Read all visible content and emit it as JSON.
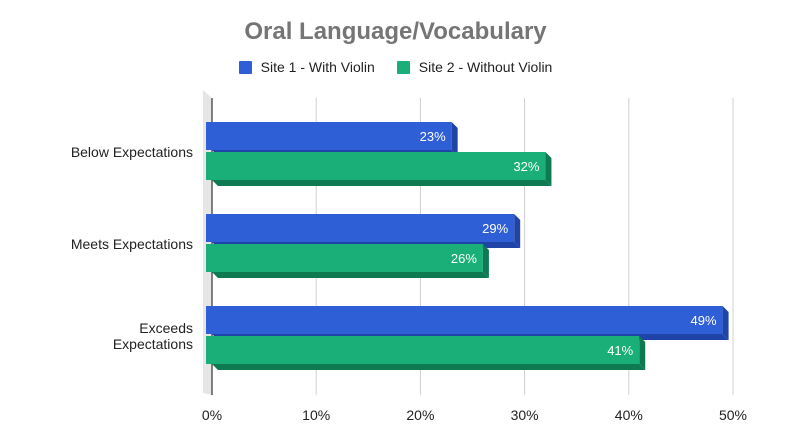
{
  "chart_data": {
    "type": "bar",
    "orientation": "horizontal",
    "title": "Oral Language/Vocabulary",
    "categories": [
      [
        "Below Expectations"
      ],
      [
        "Meets Expectations"
      ],
      [
        "Exceeds",
        "Expectations"
      ]
    ],
    "series": [
      {
        "name": "Site 1 - With Violin",
        "values": [
          23,
          29,
          49
        ],
        "labels": [
          "23%",
          "29%",
          "49%"
        ],
        "color": "#2f5fd6",
        "shade": "#1f43a6"
      },
      {
        "name": "Site 2 - Without Violin",
        "values": [
          32,
          26,
          41
        ],
        "labels": [
          "32%",
          "26%",
          "41%"
        ],
        "color": "#1aaf78",
        "shade": "#0f7a52"
      }
    ],
    "xlim": [
      0,
      50
    ],
    "xticks": [
      0,
      10,
      20,
      30,
      40,
      50
    ],
    "xtick_labels": [
      "0%",
      "10%",
      "20%",
      "30%",
      "40%",
      "50%"
    ],
    "grid": true,
    "legend_position": "top"
  }
}
